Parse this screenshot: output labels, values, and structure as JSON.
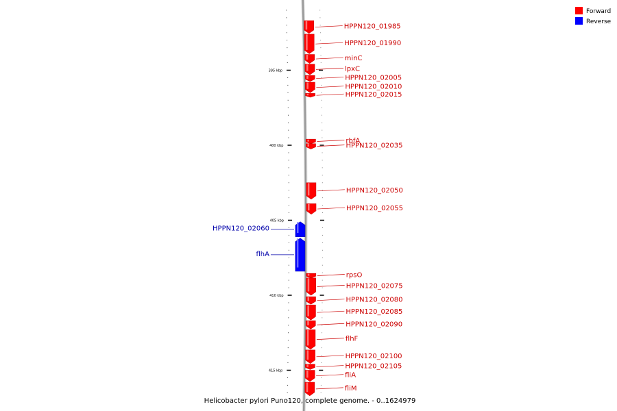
{
  "title": "Helicobacter pylori Puno120, complete genome. - 0..1624979",
  "colors": {
    "forward": "#ff0000",
    "forward_dark": "#cc0000",
    "forward_light": "#ff9090",
    "reverse": "#0000ff",
    "reverse_dark": "#0000b0",
    "reverse_light": "#8080ff",
    "backbone": "#999999",
    "forward_text": "#cc0000",
    "reverse_text": "#0000aa"
  },
  "legend": [
    {
      "label": "Forward",
      "strand": "forward"
    },
    {
      "label": "Reverse",
      "strand": "reverse"
    }
  ],
  "ticks": [
    {
      "label": "395 kbp",
      "kbp": 395
    },
    {
      "label": "400 kbp",
      "kbp": 400
    },
    {
      "label": "405 kbp",
      "kbp": 405
    },
    {
      "label": "410 kbp",
      "kbp": 410
    },
    {
      "label": "415 kbp",
      "kbp": 415
    }
  ],
  "genes": [
    {
      "name": "HPPN120_01985",
      "strand": "forward",
      "start_kbp": 391.7,
      "end_kbp": 392.55
    },
    {
      "name": "HPPN120_01990",
      "strand": "forward",
      "start_kbp": 392.6,
      "end_kbp": 393.9
    },
    {
      "name": "minC",
      "strand": "forward",
      "start_kbp": 393.95,
      "end_kbp": 394.55
    },
    {
      "name": "lpxC",
      "strand": "forward",
      "start_kbp": 394.6,
      "end_kbp": 395.3
    },
    {
      "name": "HPPN120_02005",
      "strand": "forward",
      "start_kbp": 395.35,
      "end_kbp": 395.75
    },
    {
      "name": "HPPN120_02010",
      "strand": "forward",
      "start_kbp": 395.8,
      "end_kbp": 396.5
    },
    {
      "name": "HPPN120_02015",
      "strand": "forward",
      "start_kbp": 396.55,
      "end_kbp": 396.8
    },
    {
      "name": "rbfA",
      "strand": "forward",
      "start_kbp": 399.6,
      "end_kbp": 399.9
    },
    {
      "name": "HPPN120_02035",
      "strand": "forward",
      "start_kbp": 399.9,
      "end_kbp": 400.25
    },
    {
      "name": "HPPN120_02050",
      "strand": "forward",
      "start_kbp": 402.5,
      "end_kbp": 403.6
    },
    {
      "name": "HPPN120_02055",
      "strand": "forward",
      "start_kbp": 403.9,
      "end_kbp": 404.6
    },
    {
      "name": "HPPN120_02060",
      "strand": "reverse",
      "start_kbp": 405.1,
      "end_kbp": 406.1
    },
    {
      "name": "flhA",
      "strand": "reverse",
      "start_kbp": 406.2,
      "end_kbp": 408.4
    },
    {
      "name": "rpsO",
      "strand": "forward",
      "start_kbp": 408.55,
      "end_kbp": 408.85
    },
    {
      "name": "HPPN120_02075",
      "strand": "forward",
      "start_kbp": 408.85,
      "end_kbp": 410.0
    },
    {
      "name": "HPPN120_02080",
      "strand": "forward",
      "start_kbp": 410.1,
      "end_kbp": 410.6
    },
    {
      "name": "HPPN120_02085",
      "strand": "forward",
      "start_kbp": 410.65,
      "end_kbp": 411.65
    },
    {
      "name": "HPPN120_02090",
      "strand": "forward",
      "start_kbp": 411.7,
      "end_kbp": 412.25
    },
    {
      "name": "flhF",
      "strand": "forward",
      "start_kbp": 412.3,
      "end_kbp": 413.6
    },
    {
      "name": "HPPN120_02100",
      "strand": "forward",
      "start_kbp": 413.65,
      "end_kbp": 414.55
    },
    {
      "name": "HPPN120_02105",
      "strand": "forward",
      "start_kbp": 414.6,
      "end_kbp": 414.95
    },
    {
      "name": "fliA",
      "strand": "forward",
      "start_kbp": 415.0,
      "end_kbp": 415.75
    },
    {
      "name": "fliM",
      "strand": "forward",
      "start_kbp": 415.8,
      "end_kbp": 416.7
    }
  ]
}
